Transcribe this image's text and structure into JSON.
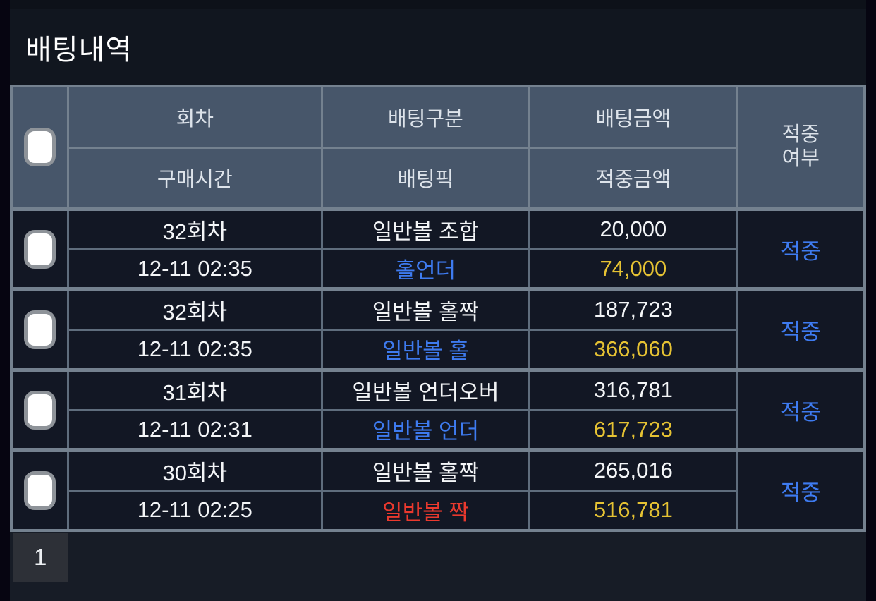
{
  "title": "배팅내역",
  "colors": {
    "accent_blue": "#3e7bf0",
    "accent_yellow": "#e5c233",
    "accent_red": "#ea392e",
    "header_bg": "#47566a",
    "cell_bg": "#121724",
    "border": "#74818f"
  },
  "table": {
    "headers": {
      "round": "회차",
      "purchase_time": "구매시간",
      "bet_type": "배팅구분",
      "bet_pick": "배팅픽",
      "bet_amount": "배팅금액",
      "win_amount": "적중금액",
      "hit_status": "적중여부"
    },
    "rows": [
      {
        "round": "32회차",
        "time": "12-11 02:35",
        "bet_type": "일반볼 조합",
        "bet_pick": "홀언더",
        "pick_color": "blue",
        "bet_amount": "20,000",
        "win_amount": "74,000",
        "status": "적중"
      },
      {
        "round": "32회차",
        "time": "12-11 02:35",
        "bet_type": "일반볼 홀짝",
        "bet_pick": "일반볼 홀",
        "pick_color": "blue",
        "bet_amount": "187,723",
        "win_amount": "366,060",
        "status": "적중"
      },
      {
        "round": "31회차",
        "time": "12-11 02:31",
        "bet_type": "일반볼 언더오버",
        "bet_pick": "일반볼 언더",
        "pick_color": "blue",
        "bet_amount": "316,781",
        "win_amount": "617,723",
        "status": "적중"
      },
      {
        "round": "30회차",
        "time": "12-11 02:25",
        "bet_type": "일반볼 홀짝",
        "bet_pick": "일반볼 짝",
        "pick_color": "red",
        "bet_amount": "265,016",
        "win_amount": "516,781",
        "status": "적중"
      }
    ]
  },
  "pagination": {
    "current_page": "1"
  }
}
